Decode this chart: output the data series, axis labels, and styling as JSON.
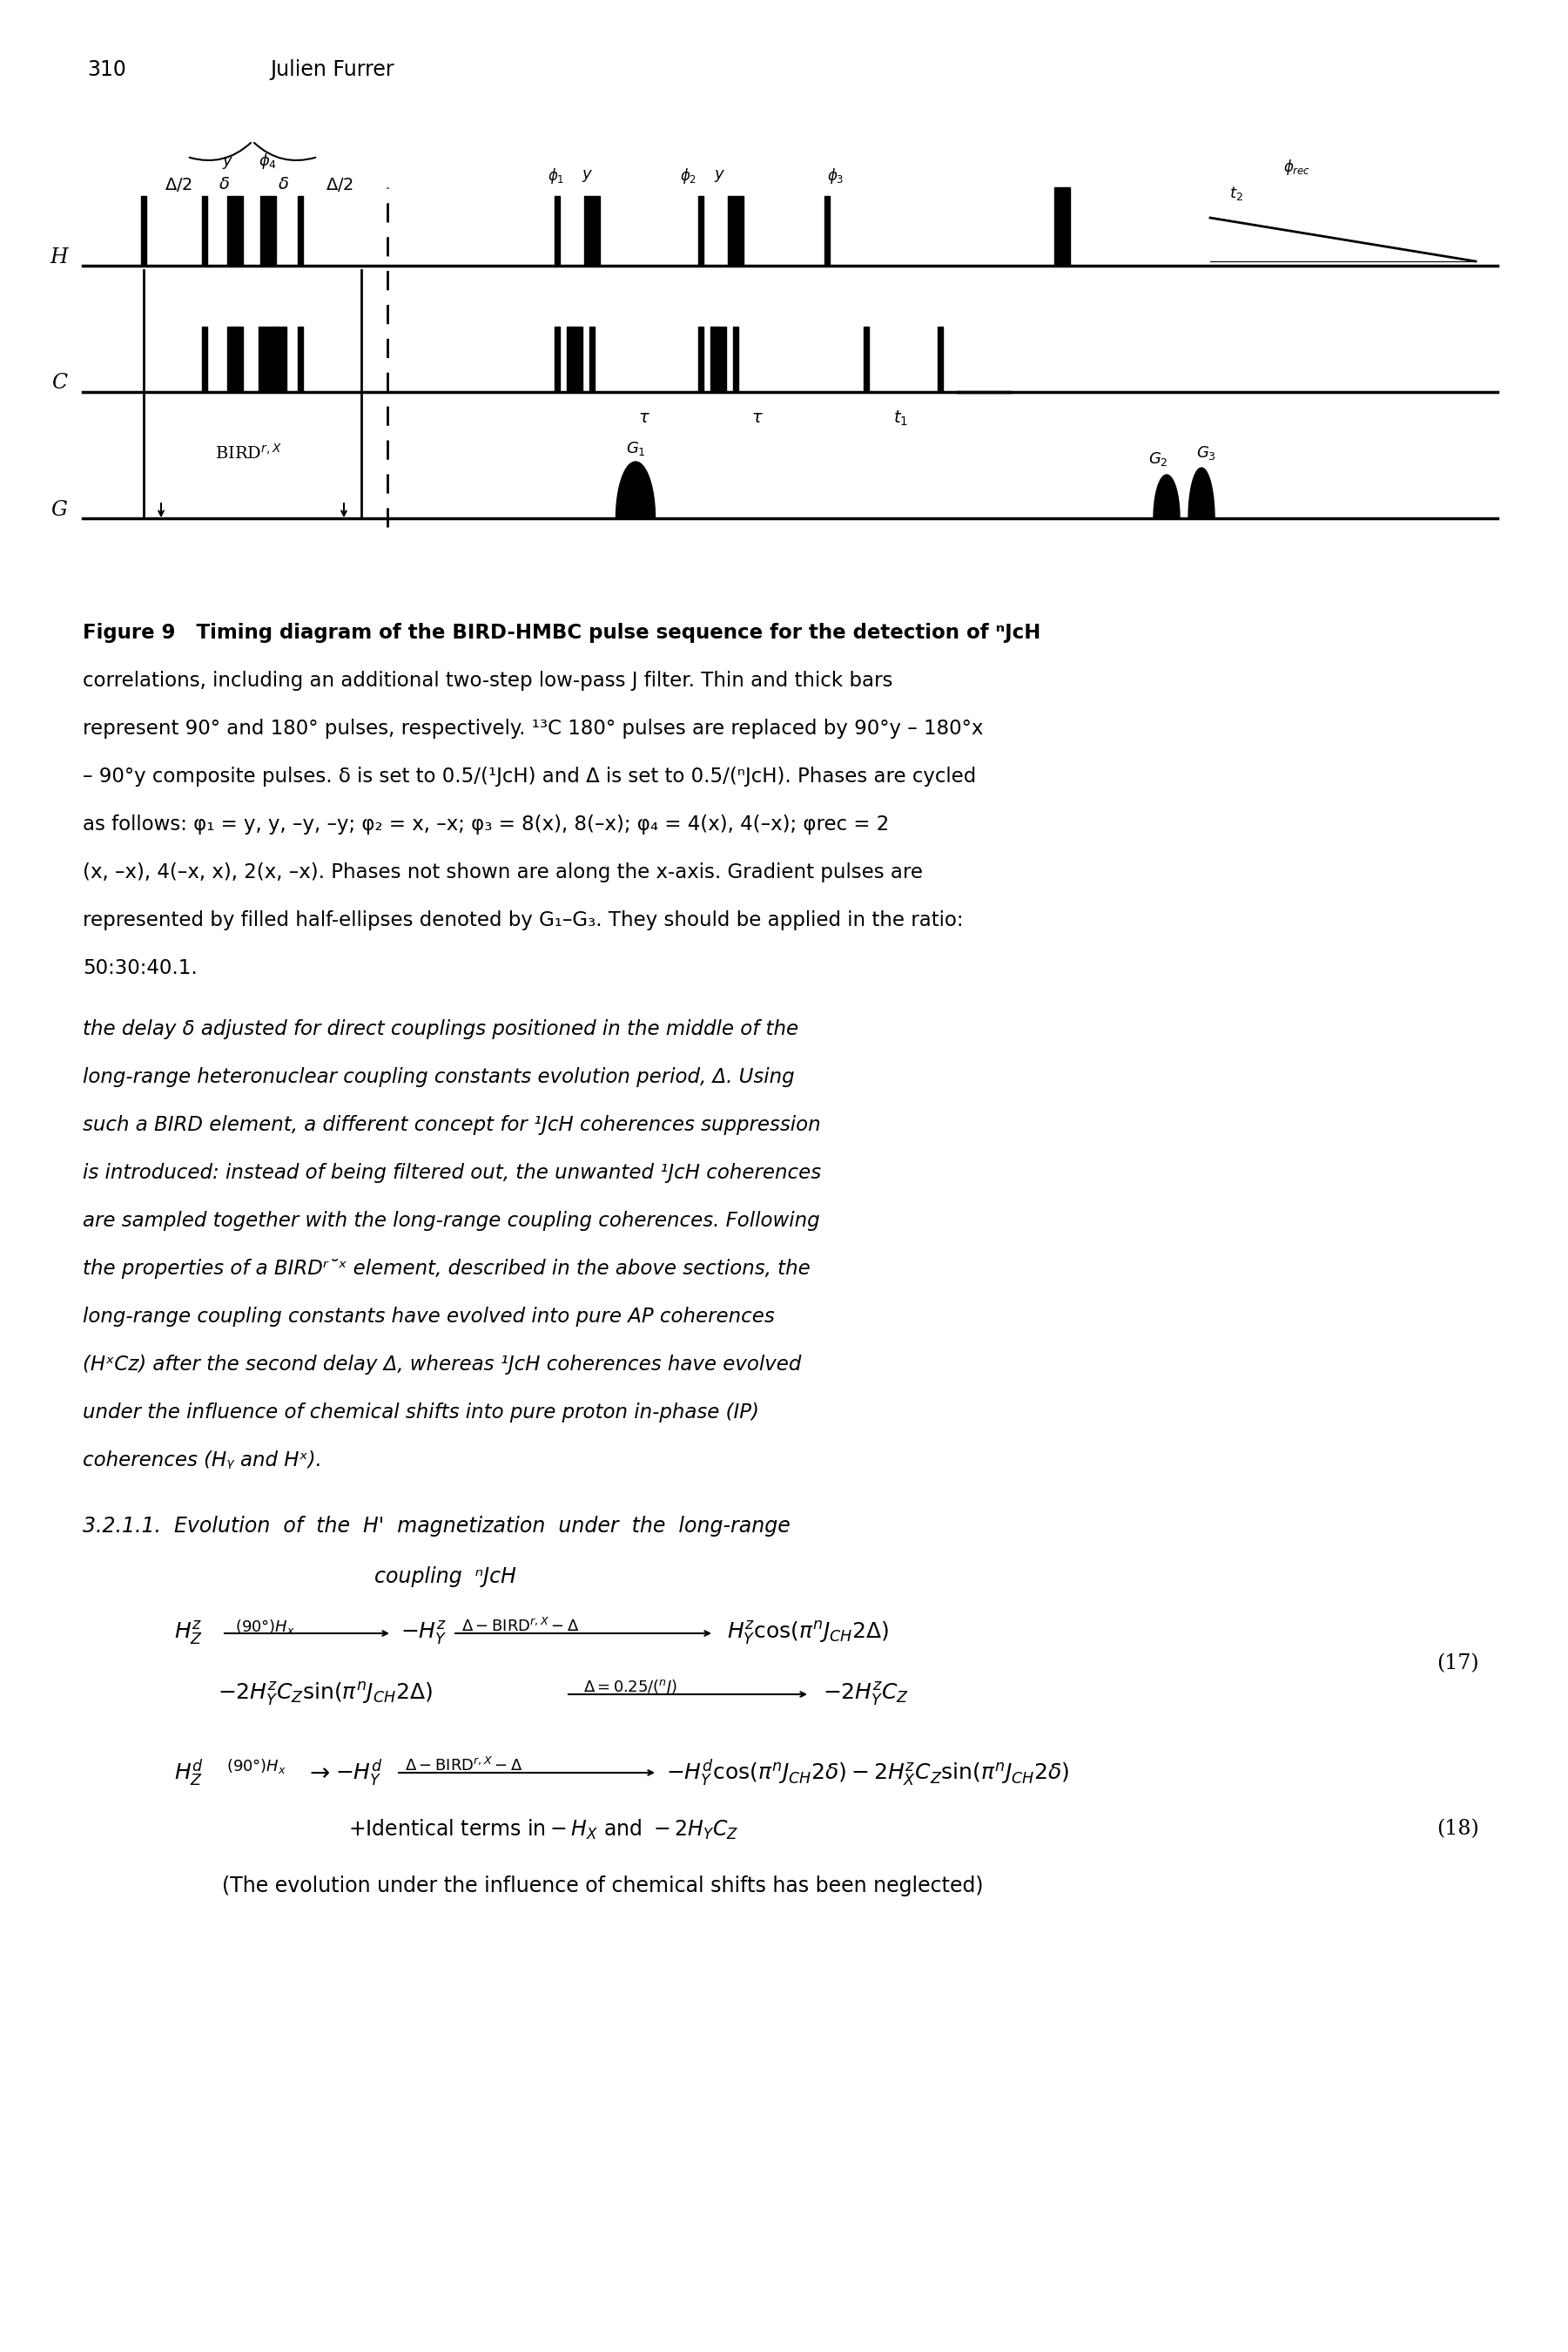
{
  "page_number": "310",
  "author": "Julien Furrer",
  "figure_caption_lines": [
    "Figure 9   Timing diagram of the BIRD-HMBC pulse sequence for the detection of ⁿJᴄH",
    "correlations, including an additional two-step low-pass J filter. Thin and thick bars",
    "represent 90° and 180° pulses, respectively. ¹³C 180° pulses are replaced by 90°y – 180°x",
    "– 90°y composite pulses. δ is set to 0.5/(¹JᴄH) and Δ is set to 0.5/(ⁿJᴄH). Phases are cycled",
    "as follows: φ₁ = y, y, –y, –y; φ₂ = x, –x; φ₃ = 8(x), 8(–x); φ₄ = 4(x), 4(–x); φrec = 2",
    "(x, –x), 4(–x, x), 2(x, –x). Phases not shown are along the x-axis. Gradient pulses are",
    "represented by filled half-ellipses denoted by G₁–G₃. They should be applied in the ratio:",
    "50:30:40.1."
  ],
  "body_text_lines": [
    "the delay δ adjusted for direct couplings positioned in the middle of the",
    "long-range heteronuclear coupling constants evolution period, Δ. Using",
    "such a BIRD element, a different concept for ¹JᴄH coherences suppression",
    "is introduced: instead of being filtered out, the unwanted ¹JᴄH coherences",
    "are sampled together with the long-range coupling coherences. Following",
    "the properties of a BIRDʳ˘ˣ element, described in the above sections, the",
    "long-range coupling constants have evolved into pure AP coherences",
    "(HˣCᴢ) after the second delay Δ, whereas ¹JᴄH coherences have evolved",
    "under the influence of chemical shifts into pure proton in-phase (IP)",
    "coherences (Hᵧ and Hˣ)."
  ],
  "section_header": "3.2.1.1.  Evolution  of  the  Hʳ  magnetization  under  the  long-range",
  "section_header2": "coupling  ⁿJᴄH",
  "eq17_line1": "Hᵢᴢ  —ⁿ₀ᴪʳHˣ—→  −Hʳᵧ  —Δ−BIRDʳ˘ˣ−Δ—→  Hʳᵧ cos(πⁿJᴄH2Δ)",
  "eq17_line2": "− 2HʳᵧCᴢ sin(πⁿJᴄH2Δ)  —Δ=0.25/(ⁿJ)—→  −2HʳᵧCᴢ",
  "eq18_line1": "Hᵢᴯ  ⁿ₀ᴪʳHˣ  →  −Hᴯᵧ  —Δ−BIRDʳ˘ˣ−Δ—→  −Hᴯᵧ cos(πⁿJᴄH2δ) − 2HˣᵧCᴢ sin(πⁿJᴄH2δ)",
  "eq18_line2": "+Identical terms in − Hˣ and − 2HᵧCᴢ",
  "eq18_line3": "(The evolution under the influence of chemical shifts has been neglected)",
  "background_color": "#ffffff",
  "text_color": "#000000",
  "pulse_color": "#000000"
}
